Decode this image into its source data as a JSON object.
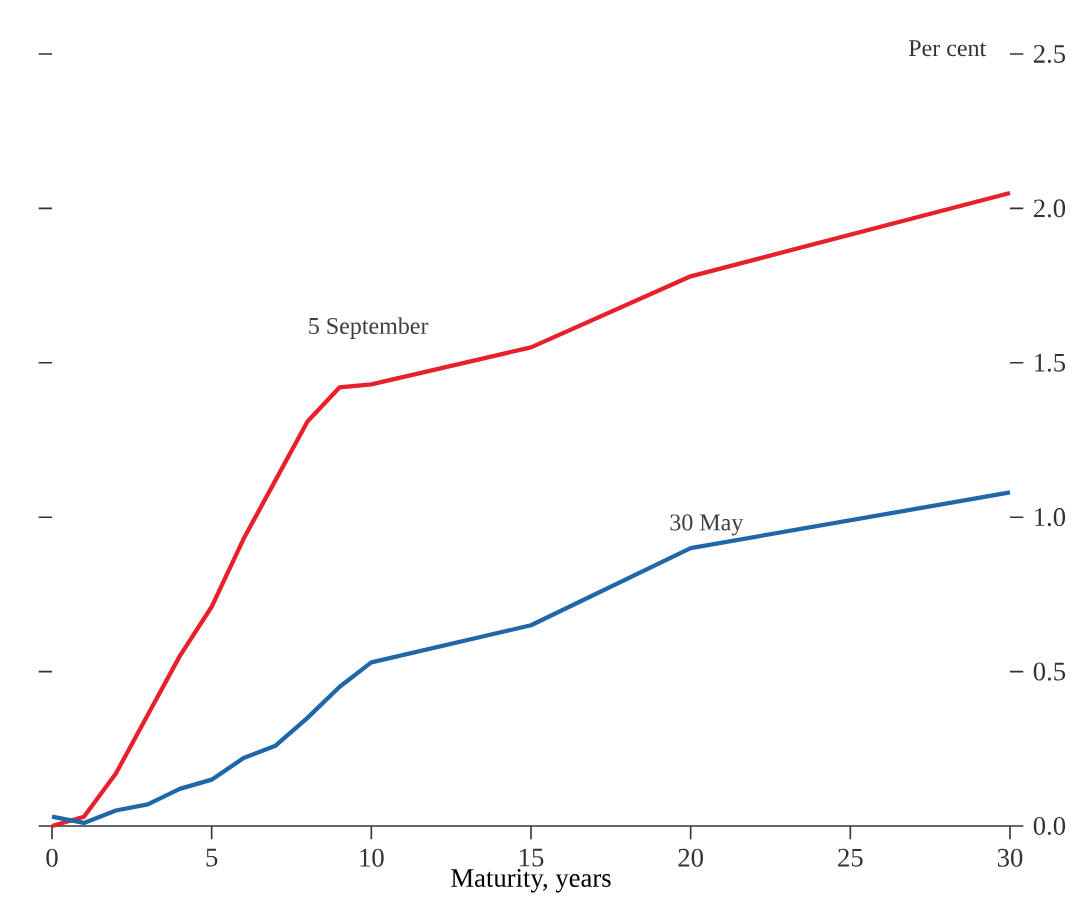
{
  "chart_data": {
    "type": "line",
    "xlabel": "Maturity, years",
    "ylabel": "Per cent",
    "x": [
      0,
      1,
      2,
      3,
      4,
      5,
      6,
      7,
      8,
      9,
      10,
      15,
      20,
      30
    ],
    "series": [
      {
        "color": "#e8202a",
        "values": [
          0.0,
          0.03,
          0.17,
          0.36,
          0.55,
          0.71,
          0.93,
          1.12,
          1.31,
          1.42,
          1.43,
          1.55,
          1.78,
          2.05
        ]
      },
      {
        "color": "#1f67a8",
        "values": [
          0.03,
          0.01,
          0.05,
          0.07,
          0.12,
          0.15,
          0.22,
          0.26,
          0.35,
          0.45,
          0.53,
          0.65,
          0.9,
          1.08
        ]
      }
    ],
    "xlim": [
      0,
      30
    ],
    "xticks": [
      0,
      5,
      10,
      15,
      20,
      25,
      30
    ],
    "ylim": [
      0,
      2.5
    ],
    "yticks": [
      {
        "value": 0,
        "label": "0.0"
      },
      {
        "value": 0.5,
        "label": "0.5"
      },
      {
        "value": 1,
        "label": "1.0"
      },
      {
        "value": 1.5,
        "label": "1.5"
      },
      {
        "value": 2,
        "label": "2.0"
      },
      {
        "value": 2.5,
        "label": "2.5"
      }
    ],
    "annotations": [
      "5 September",
      "30 May"
    ],
    "grid": false
  }
}
